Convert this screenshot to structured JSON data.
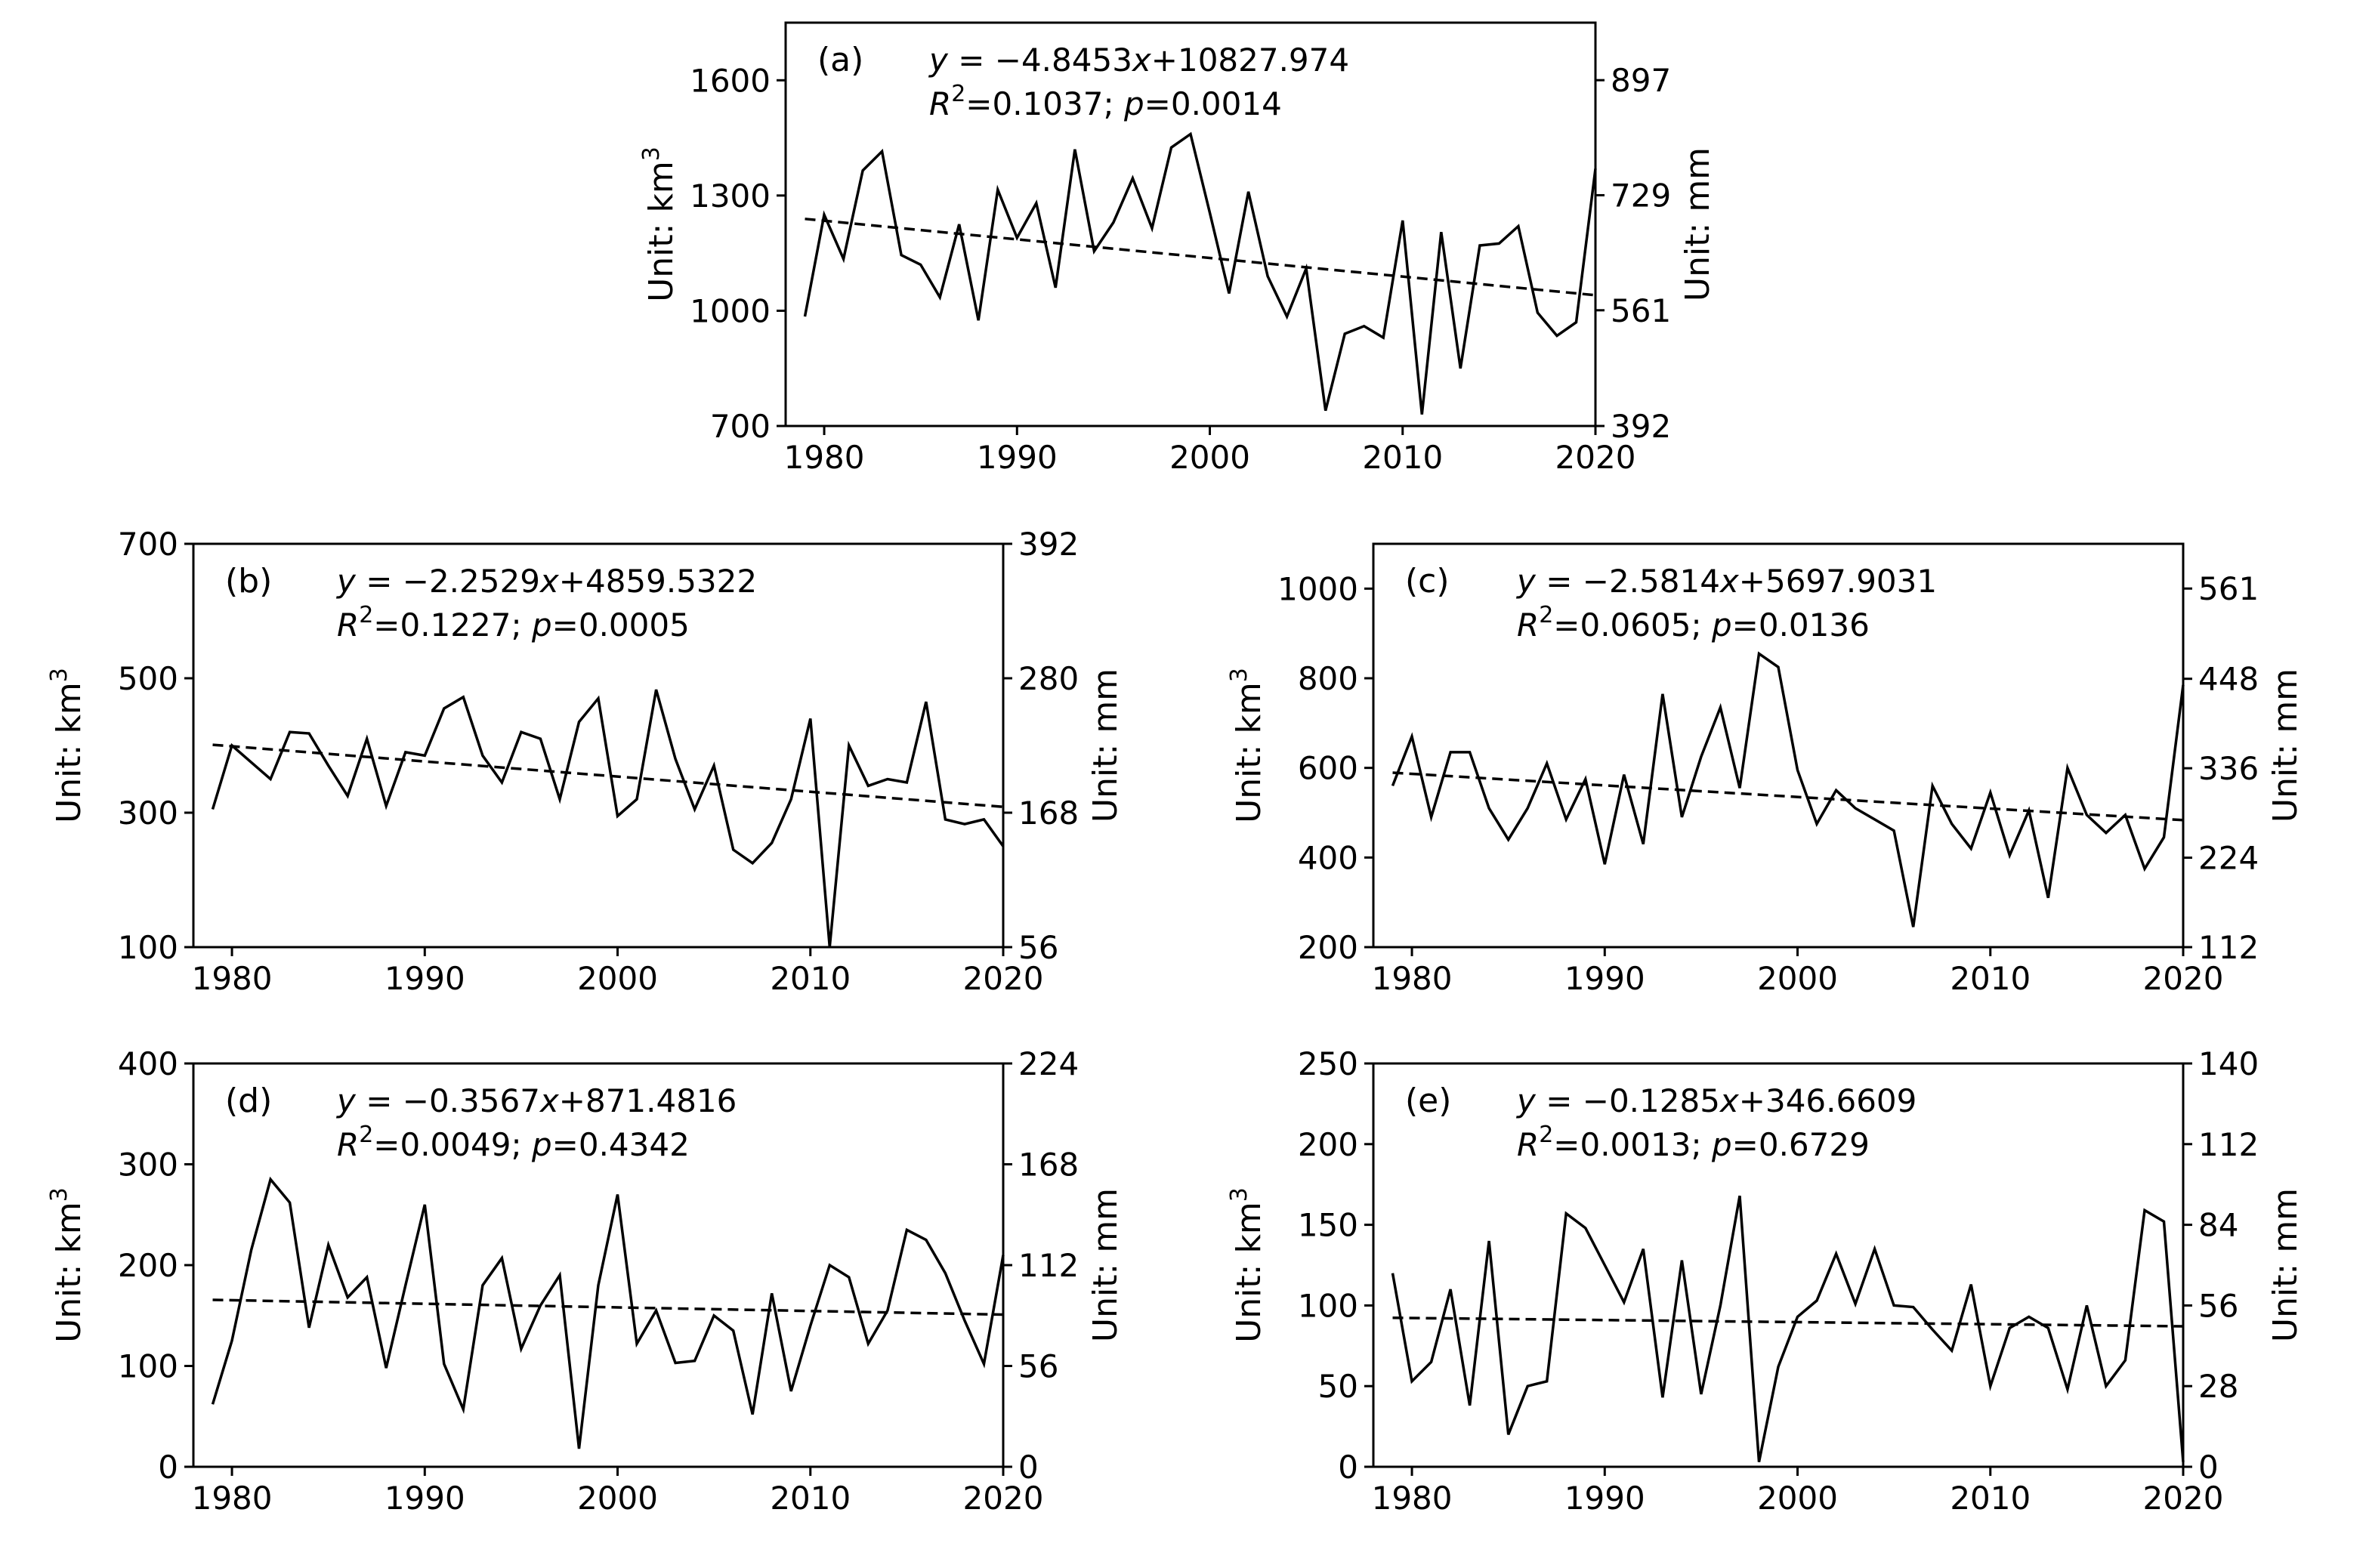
{
  "chart_data": [
    {
      "id": "a",
      "type": "line",
      "panel_label": "(a)",
      "equation": {
        "slope": "−4.8453",
        "intercept": "+10827.974",
        "r2": "0.1037",
        "p": "0.0014"
      },
      "xlabel": "",
      "ylabel": "Unit: km3",
      "y2label": "Unit: mm",
      "xlim": [
        1978,
        2020
      ],
      "ylim": [
        700,
        1750
      ],
      "y2lim": [
        392,
        981
      ],
      "xticks": [
        1980,
        1990,
        2000,
        2010,
        2020
      ],
      "yticks": [
        700,
        1000,
        1300,
        1600
      ],
      "y2ticks": [
        392,
        561,
        729,
        897
      ],
      "trend": {
        "slope": -4.8453,
        "intercept": 10827.974
      },
      "x": [
        1979,
        1980,
        1981,
        1982,
        1983,
        1984,
        1985,
        1986,
        1987,
        1988,
        1989,
        1990,
        1991,
        1992,
        1993,
        1994,
        1995,
        1996,
        1997,
        1998,
        1999,
        2000,
        2001,
        2002,
        2003,
        2004,
        2005,
        2006,
        2007,
        2008,
        2009,
        2010,
        2011,
        2012,
        2013,
        2014,
        2015,
        2016,
        2017,
        2018,
        2019,
        2020
      ],
      "values": [
        985,
        1250,
        1135,
        1365,
        1415,
        1145,
        1120,
        1035,
        1225,
        975,
        1315,
        1190,
        1280,
        1060,
        1420,
        1155,
        1230,
        1345,
        1215,
        1425,
        1460,
        1255,
        1045,
        1310,
        1090,
        985,
        1110,
        740,
        940,
        960,
        930,
        1235,
        730,
        1205,
        850,
        1170,
        1175,
        1220,
        995,
        935,
        970,
        1370
      ]
    },
    {
      "id": "b",
      "type": "line",
      "panel_label": "(b)",
      "equation": {
        "slope": "−2.2529",
        "intercept": "+4859.5322",
        "r2": "0.1227",
        "p": "0.0005"
      },
      "xlabel": "",
      "ylabel": "Unit: km3",
      "y2label": "Unit: mm",
      "xlim": [
        1978,
        2020
      ],
      "ylim": [
        100,
        700
      ],
      "y2lim": [
        56,
        392
      ],
      "xticks": [
        1980,
        1990,
        2000,
        2010,
        2020
      ],
      "yticks": [
        100,
        300,
        500,
        700
      ],
      "y2ticks": [
        56,
        168,
        280,
        392
      ],
      "trend": {
        "slope": -2.2529,
        "intercept": 4859.5322
      },
      "x": [
        1979,
        1980,
        1981,
        1982,
        1983,
        1984,
        1985,
        1986,
        1987,
        1988,
        1989,
        1990,
        1991,
        1992,
        1993,
        1994,
        1995,
        1996,
        1997,
        1998,
        1999,
        2000,
        2001,
        2002,
        2003,
        2004,
        2005,
        2006,
        2007,
        2008,
        2009,
        2010,
        2011,
        2012,
        2013,
        2014,
        2015,
        2016,
        2017,
        2018,
        2019,
        2020
      ],
      "values": [
        305,
        400,
        375,
        350,
        420,
        418,
        370,
        325,
        410,
        310,
        390,
        385,
        455,
        472,
        385,
        345,
        420,
        410,
        320,
        435,
        470,
        295,
        320,
        483,
        380,
        305,
        370,
        245,
        225,
        255,
        320,
        440,
        100,
        400,
        340,
        350,
        345,
        465,
        290,
        283,
        290,
        250
      ]
    },
    {
      "id": "c",
      "type": "line",
      "panel_label": "(c)",
      "equation": {
        "slope": "−2.5814",
        "intercept": "+5697.9031",
        "r2": "0.0605",
        "p": "0.0136"
      },
      "xlabel": "",
      "ylabel": "Unit: km3",
      "y2label": "Unit: mm",
      "xlim": [
        1978,
        2020
      ],
      "ylim": [
        200,
        1100
      ],
      "y2lim": [
        112,
        617
      ],
      "xticks": [
        1980,
        1990,
        2000,
        2010,
        2020
      ],
      "yticks": [
        200,
        400,
        600,
        800,
        1000
      ],
      "y2ticks": [
        112,
        224,
        336,
        448,
        561
      ],
      "trend": {
        "slope": -2.5814,
        "intercept": 5697.9031
      },
      "x": [
        1979,
        1980,
        1981,
        1982,
        1983,
        1984,
        1985,
        1986,
        1987,
        1988,
        1989,
        1990,
        1991,
        1992,
        1993,
        1994,
        1995,
        1996,
        1997,
        1998,
        1999,
        2000,
        2001,
        2002,
        2003,
        2004,
        2005,
        2006,
        2007,
        2008,
        2009,
        2010,
        2011,
        2012,
        2013,
        2014,
        2015,
        2016,
        2017,
        2018,
        2019,
        2020
      ],
      "values": [
        560,
        670,
        490,
        635,
        635,
        510,
        440,
        510,
        610,
        485,
        575,
        385,
        585,
        430,
        765,
        490,
        625,
        735,
        555,
        855,
        825,
        595,
        475,
        550,
        510,
        485,
        460,
        245,
        560,
        475,
        420,
        545,
        405,
        505,
        310,
        600,
        495,
        455,
        495,
        375,
        445,
        785
      ]
    },
    {
      "id": "d",
      "type": "line",
      "panel_label": "(d)",
      "equation": {
        "slope": "−0.3567",
        "intercept": "+871.4816",
        "r2": "0.0049",
        "p": "0.4342"
      },
      "xlabel": "",
      "ylabel": "Unit: km3",
      "y2label": "Unit: mm",
      "xlim": [
        1978,
        2020
      ],
      "ylim": [
        0,
        400
      ],
      "y2lim": [
        0,
        224
      ],
      "xticks": [
        1980,
        1990,
        2000,
        2010,
        2020
      ],
      "yticks": [
        0,
        100,
        200,
        300,
        400
      ],
      "y2ticks": [
        0,
        56,
        112,
        168,
        224
      ],
      "trend": {
        "slope": -0.3567,
        "intercept": 871.4816
      },
      "x": [
        1979,
        1980,
        1981,
        1982,
        1983,
        1984,
        1985,
        1986,
        1987,
        1988,
        1989,
        1990,
        1991,
        1992,
        1993,
        1994,
        1995,
        1996,
        1997,
        1998,
        1999,
        2000,
        2001,
        2002,
        2003,
        2004,
        2005,
        2006,
        2007,
        2008,
        2009,
        2010,
        2011,
        2012,
        2013,
        2014,
        2015,
        2016,
        2017,
        2018,
        2019,
        2020
      ],
      "values": [
        62,
        125,
        215,
        285,
        262,
        138,
        220,
        168,
        188,
        98,
        180,
        260,
        102,
        57,
        180,
        207,
        117,
        160,
        190,
        18,
        180,
        270,
        122,
        155,
        103,
        105,
        150,
        135,
        52,
        172,
        75,
        140,
        200,
        188,
        122,
        155,
        235,
        225,
        192,
        145,
        102,
        210
      ]
    },
    {
      "id": "e",
      "type": "line",
      "panel_label": "(e)",
      "equation": {
        "slope": "−0.1285",
        "intercept": "+346.6609",
        "r2": "0.0013",
        "p": "0.6729"
      },
      "xlabel": "",
      "ylabel": "Unit: km3",
      "y2label": "Unit: mm",
      "xlim": [
        1978,
        2020
      ],
      "ylim": [
        0,
        250
      ],
      "y2lim": [
        0,
        140
      ],
      "xticks": [
        1980,
        1990,
        2000,
        2010,
        2020
      ],
      "yticks": [
        0,
        50,
        100,
        150,
        200,
        250
      ],
      "y2ticks": [
        0,
        28,
        56,
        84,
        112,
        140
      ],
      "trend": {
        "slope": -0.1285,
        "intercept": 346.6609
      },
      "x": [
        1979,
        1980,
        1981,
        1982,
        1983,
        1984,
        1985,
        1986,
        1987,
        1988,
        1989,
        1990,
        1991,
        1992,
        1993,
        1994,
        1995,
        1996,
        1997,
        1998,
        1999,
        2000,
        2001,
        2002,
        2003,
        2004,
        2005,
        2006,
        2007,
        2008,
        2009,
        2010,
        2011,
        2012,
        2013,
        2014,
        2015,
        2016,
        2017,
        2018,
        2019,
        2020
      ],
      "values": [
        120,
        53,
        65,
        110,
        38,
        140,
        20,
        50,
        53,
        157,
        148,
        125,
        102,
        135,
        43,
        128,
        45,
        100,
        168,
        3,
        62,
        93,
        103,
        132,
        101,
        135,
        100,
        99,
        85,
        72,
        113,
        50,
        86,
        93,
        86,
        48,
        100,
        50,
        66,
        159,
        152,
        3
      ]
    }
  ]
}
